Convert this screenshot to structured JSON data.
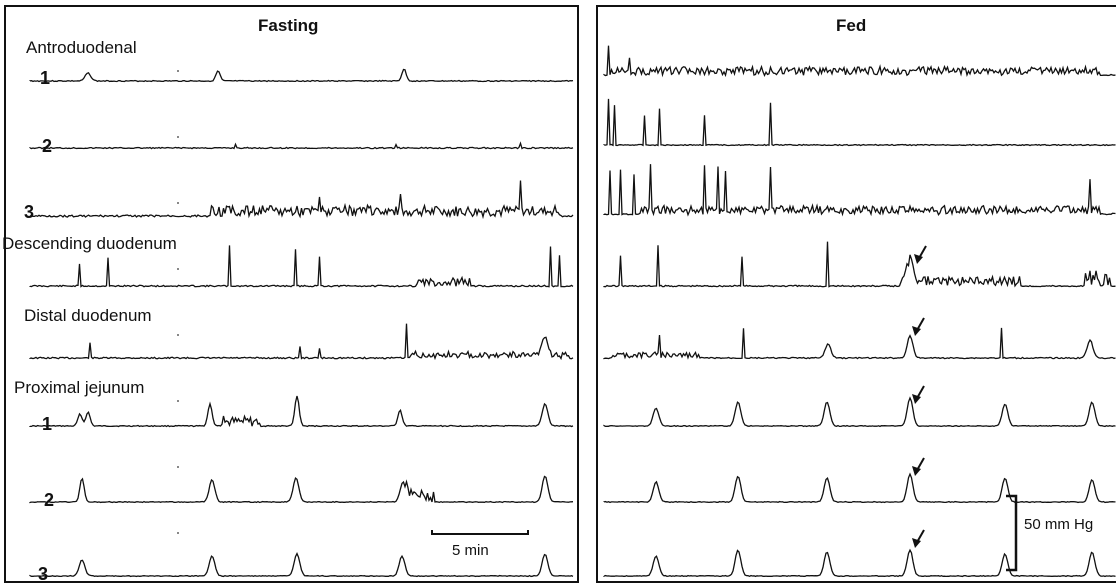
{
  "panels": {
    "left": {
      "title": "Fasting",
      "segment_labels": {
        "antroduodenal": "Antroduodenal",
        "descending": "Descending duodenum",
        "distal": "Distal duodenum",
        "jejunum": "Proximal jejunum"
      },
      "channel_numbers": [
        "1",
        "2",
        "3",
        "1",
        "2",
        "3"
      ],
      "time_scale_label": "5 min"
    },
    "right": {
      "title": "Fed",
      "pressure_scale_label": "50 mm Hg"
    }
  },
  "trace_style": {
    "stroke": "#111111"
  }
}
